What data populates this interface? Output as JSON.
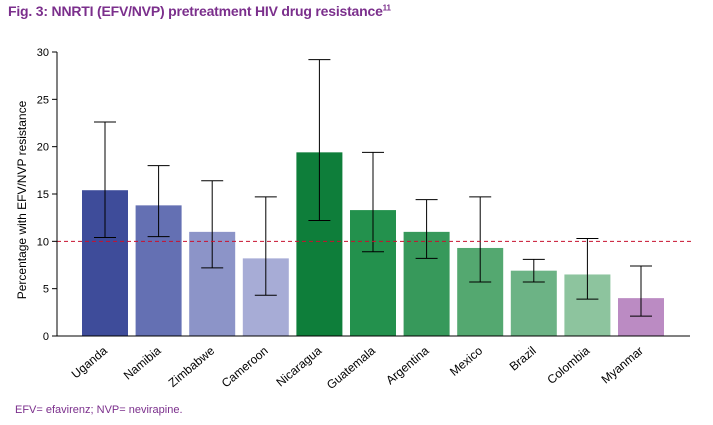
{
  "title": {
    "prefix": "Fig. 3:",
    "main": "NNRTI (EFV/NVP) pretreatment HIV drug resistance",
    "ref": "11"
  },
  "footnote": "EFV= efavirenz; NVP= nevirapine.",
  "chart_data": {
    "type": "bar",
    "ylabel": "Percentage with EFV/NVP resistance",
    "xlabel": "",
    "ylim": [
      0,
      30
    ],
    "yticks": [
      0,
      5,
      10,
      15,
      20,
      25,
      30
    ],
    "reference_line": 10,
    "categories": [
      "Uganda",
      "Namibia",
      "Zimbabwe",
      "Cameroon",
      "Nicaragua",
      "Guatemala",
      "Argentina",
      "Mexico",
      "Brazil",
      "Colombia",
      "Myanmar"
    ],
    "values": [
      15.4,
      13.8,
      11.0,
      8.2,
      19.4,
      13.3,
      11.0,
      9.3,
      6.9,
      6.5,
      4.0
    ],
    "error_low": [
      10.4,
      10.5,
      7.2,
      4.3,
      12.2,
      8.9,
      8.2,
      5.7,
      5.7,
      3.9,
      2.1
    ],
    "error_high": [
      22.6,
      18.0,
      16.4,
      14.7,
      29.2,
      19.4,
      14.4,
      14.7,
      8.1,
      10.3,
      7.4
    ],
    "colors": [
      "#3e4c9a",
      "#6470b3",
      "#8c94c8",
      "#a7acd6",
      "#0e7e3a",
      "#23914d",
      "#37995b",
      "#54a870",
      "#6cb385",
      "#8dc49e",
      "#bb8bc3"
    ]
  }
}
